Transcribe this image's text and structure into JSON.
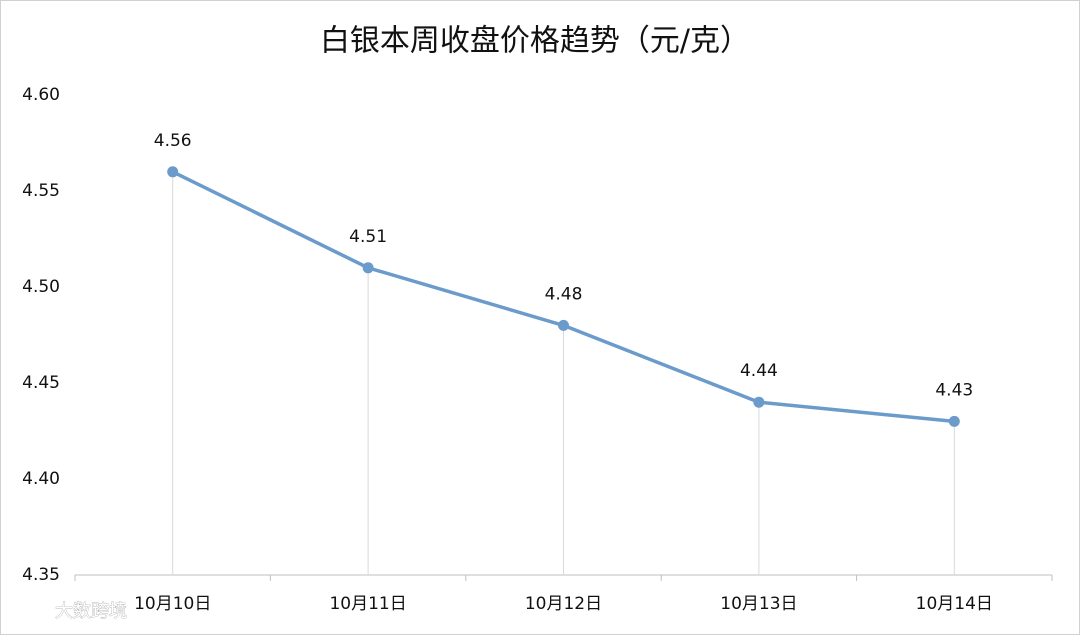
{
  "chart_data": {
    "type": "line",
    "title": "白银本周收盘价格趋势（元/克）",
    "categories": [
      "10月10日",
      "10月11日",
      "10月12日",
      "10月13日",
      "10月14日"
    ],
    "values": [
      4.56,
      4.51,
      4.48,
      4.44,
      4.43
    ],
    "color": "#6a9bcb",
    "drop_lines": true,
    "ylim": [
      4.35,
      4.6
    ],
    "yticks": [
      4.35,
      {
        "value": 4.4,
        "label": "4.40"
      },
      4.45,
      {
        "value": 4.5,
        "label": "4.50"
      },
      4.55,
      {
        "value": 4.6,
        "label": "4.60"
      }
    ],
    "grid": false,
    "watermark": "大数跨境"
  }
}
